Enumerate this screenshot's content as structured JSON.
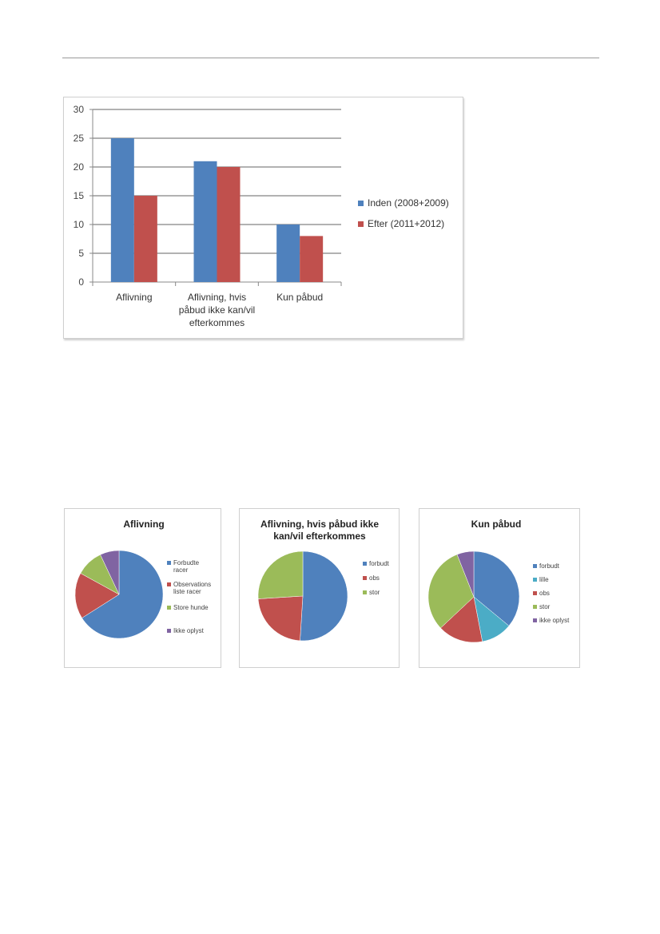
{
  "chart_data": [
    {
      "type": "bar",
      "title": "",
      "xlabel": "",
      "ylabel": "",
      "ylim": [
        0,
        30
      ],
      "yticks": [
        0,
        5,
        10,
        15,
        20,
        25,
        30
      ],
      "grid": true,
      "legend_position": "right",
      "categories": [
        "Aflivning",
        "Aflivning, hvis påbud ikke kan/vil efterkommes",
        "Kun påbud"
      ],
      "category_lines": [
        [
          "Aflivning"
        ],
        [
          "Aflivning, hvis",
          "påbud ikke kan/vil",
          "efterkommes"
        ],
        [
          "Kun påbud"
        ]
      ],
      "series": [
        {
          "name": "Inden (2008+2009)",
          "color": "#4f81bd",
          "values": [
            25,
            21,
            10
          ]
        },
        {
          "name": "Efter (2011+2012)",
          "color": "#c0504d",
          "values": [
            15,
            20,
            8
          ]
        }
      ]
    },
    {
      "type": "pie",
      "title": "Aflivning",
      "legend_position": "right",
      "slices": [
        {
          "label": "Forbudte racer",
          "label_lines": [
            "Forbudte",
            "racer"
          ],
          "value": 66,
          "color": "#4f81bd"
        },
        {
          "label": "Observations liste racer",
          "label_lines": [
            "Observations",
            "liste racer"
          ],
          "value": 17,
          "color": "#c0504d"
        },
        {
          "label": "Store hunde",
          "label_lines": [
            "Store hunde"
          ],
          "value": 10,
          "color": "#9bbb59"
        },
        {
          "label": "Ikke oplyst",
          "label_lines": [
            "Ikke oplyst"
          ],
          "value": 7,
          "color": "#8064a2"
        }
      ]
    },
    {
      "type": "pie",
      "title": "Aflivning, hvis påbud ikke kan/vil efterkommes",
      "title_lines": [
        "Aflivning, hvis påbud ikke",
        "kan/vil efterkommes"
      ],
      "legend_position": "right",
      "slices": [
        {
          "label": "forbudt",
          "label_lines": [
            "forbudt"
          ],
          "value": 51,
          "color": "#4f81bd"
        },
        {
          "label": "obs",
          "label_lines": [
            "obs"
          ],
          "value": 23,
          "color": "#c0504d"
        },
        {
          "label": "stor",
          "label_lines": [
            "stor"
          ],
          "value": 26,
          "color": "#9bbb59"
        }
      ]
    },
    {
      "type": "pie",
      "title": "Kun påbud",
      "legend_position": "right",
      "slices": [
        {
          "label": "forbudt",
          "label_lines": [
            "forbudt"
          ],
          "value": 36,
          "color": "#4f81bd"
        },
        {
          "label": "lille",
          "label_lines": [
            "lille"
          ],
          "value": 11,
          "color": "#4bacc6"
        },
        {
          "label": "obs",
          "label_lines": [
            "obs"
          ],
          "value": 16,
          "color": "#c0504d"
        },
        {
          "label": "stor",
          "label_lines": [
            "stor"
          ],
          "value": 31,
          "color": "#9bbb59"
        },
        {
          "label": "ikke oplyst",
          "label_lines": [
            "ikke oplyst"
          ],
          "value": 6,
          "color": "#8064a2"
        }
      ]
    }
  ]
}
